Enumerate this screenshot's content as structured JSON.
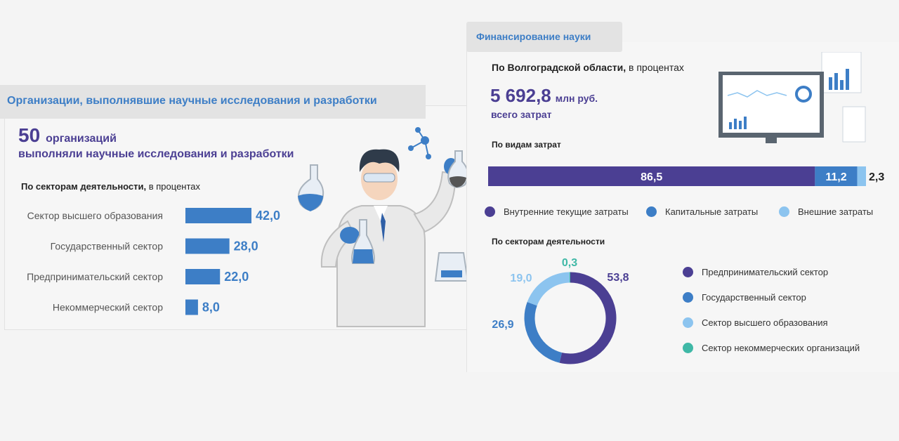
{
  "left": {
    "title": "Организации, выполнявшие научные исследования и разработки",
    "org_count": "50",
    "org_unit": "организаций",
    "org_sub": "выполняли научные исследования и разработки",
    "sectors_title_bold": "По секторам деятельности,",
    "sectors_title_rest": " в процентах"
  },
  "right": {
    "title": "Финансирование науки",
    "region_bold": "По Волгоградской области,",
    "region_rest": " в процентах",
    "total_value": "5 692,8",
    "total_unit": "млн руб.",
    "total_sub": "всего затрат",
    "kind_title": "По видам затрат",
    "sector_title": "По секторам деятельности"
  },
  "colors": {
    "purple": "#4b3f93",
    "blue": "#3d7ec6",
    "light_blue": "#8cc4ef",
    "teal": "#3fb8a6"
  },
  "chart_data": [
    {
      "type": "bar",
      "orientation": "horizontal",
      "categories": [
        "Сектор высшего образования",
        "Государственный сектор",
        "Предпринимательский сектор",
        "Некоммерческий сектор"
      ],
      "values": [
        42.0,
        28.0,
        22.0,
        8.0
      ],
      "labels": [
        "42,0",
        "28,0",
        "22,0",
        "8,0"
      ],
      "color": "#3d7ec6"
    },
    {
      "type": "bar",
      "orientation": "stacked-horizontal",
      "series": [
        {
          "name": "Внутренние текущие затраты",
          "value": 86.5,
          "label": "86,5",
          "color": "#4b3f93"
        },
        {
          "name": "Капитальные затраты",
          "value": 11.2,
          "label": "11,2",
          "color": "#3d7ec6"
        },
        {
          "name": "Внешние затраты",
          "value": 2.3,
          "label": "2,3",
          "color": "#8cc4ef"
        }
      ],
      "legend": "bottom"
    },
    {
      "type": "pie",
      "variant": "donut",
      "series": [
        {
          "name": "Предпринимательский сектор",
          "value": 53.8,
          "label": "53,8",
          "color": "#4b3f93"
        },
        {
          "name": "Государственный сектор",
          "value": 26.9,
          "label": "26,9",
          "color": "#3d7ec6"
        },
        {
          "name": "Сектор высшего образования",
          "value": 19.0,
          "label": "19,0",
          "color": "#8cc4ef"
        },
        {
          "name": "Сектор некоммерческих организаций",
          "value": 0.3,
          "label": "0,3",
          "color": "#3fb8a6"
        }
      ],
      "legend": "right"
    }
  ]
}
